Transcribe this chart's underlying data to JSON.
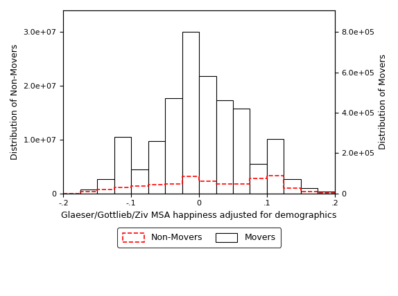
{
  "xlabel": "Glaeser/Gottlieb/Ziv MSA happiness adjusted for demographics",
  "ylabel_left": "Distribution of Non-Movers",
  "ylabel_right": "Distribution of Movers",
  "xlim": [
    -0.2,
    0.2
  ],
  "ylim_left": [
    0,
    34000000.0
  ],
  "ylim_right": [
    0,
    907000.0
  ],
  "left_yticks": [
    0,
    10000000.0,
    20000000.0,
    30000000.0
  ],
  "right_yticks": [
    0,
    200000.0,
    400000.0,
    600000.0,
    800000.0
  ],
  "bin_edges": [
    -0.2,
    -0.175,
    -0.15,
    -0.125,
    -0.1,
    -0.075,
    -0.05,
    -0.025,
    0.0,
    0.025,
    0.05,
    0.075,
    0.1,
    0.125,
    0.15,
    0.175,
    0.2
  ],
  "movers_counts": [
    0,
    20000,
    70000,
    280000,
    120000,
    260000,
    470000,
    800000,
    580000,
    460000,
    420000,
    145000,
    270000,
    70000,
    25000,
    10000,
    0
  ],
  "non_movers_counts": [
    0,
    300000,
    700000,
    1100000,
    1350000,
    1600000,
    1750000,
    3100000,
    2250000,
    1750000,
    1800000,
    2800000,
    3300000,
    950000,
    270000,
    130000,
    0
  ],
  "bar_color": "#000000",
  "dashed_color": "#ff0000",
  "background_color": "#ffffff",
  "xticks": [
    -0.2,
    -0.1,
    0.0,
    0.1,
    0.2
  ],
  "xtick_labels": [
    "-.2",
    "-.1",
    "0",
    ".1",
    ".2"
  ]
}
